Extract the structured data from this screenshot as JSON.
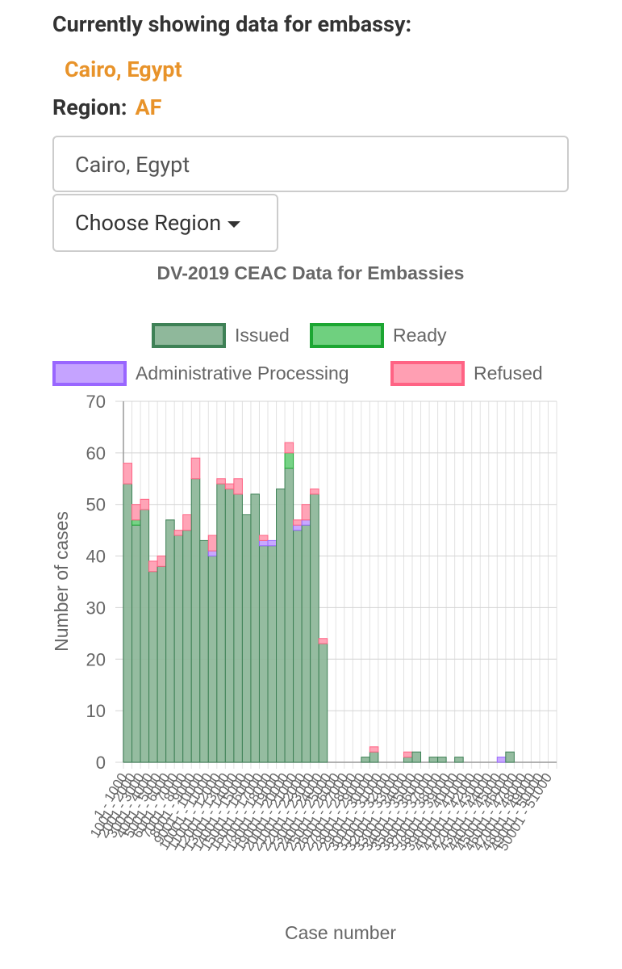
{
  "page": {
    "heading": "Currently showing data for embassy:",
    "embassy": "Cairo, Egypt",
    "region_label": "Region:",
    "region": "AF",
    "input_value": "Cairo, Egypt",
    "button": "Choose Region"
  },
  "chart_data": {
    "type": "bar",
    "stacked": true,
    "title": "DV-2019 CEAC Data for Embassies",
    "x_label": "Case number",
    "y_label": "Number of cases",
    "categories": [
      "1 - 1000",
      "1001 - 2000",
      "2001 - 3000",
      "3001 - 4000",
      "4001 - 5000",
      "5001 - 6000",
      "6001 - 7000",
      "7001 - 8000",
      "8001 - 9000",
      "9001 - 10000",
      "10001 - 11000",
      "11001 - 12000",
      "12001 - 13000",
      "13001 - 14000",
      "14001 - 15000",
      "15001 - 16000",
      "16001 - 17000",
      "17001 - 18000",
      "18001 - 19000",
      "19001 - 20000",
      "20001 - 21000",
      "21001 - 22000",
      "22001 - 23000",
      "23001 - 24000",
      "24001 - 25000",
      "25001 - 26000",
      "26001 - 27000",
      "27001 - 28000",
      "28001 - 29000",
      "29001 - 30000",
      "30001 - 31000",
      "31001 - 32000",
      "32001 - 33000",
      "33001 - 34000",
      "34001 - 35000",
      "35001 - 36000",
      "36001 - 37000",
      "37001 - 38000",
      "38001 - 39000",
      "39001 - 40000",
      "40001 - 41000",
      "41001 - 42000",
      "42001 - 43000",
      "43001 - 44000",
      "44001 - 45000",
      "45001 - 46000",
      "46001 - 47000",
      "47001 - 48000",
      "48001 - 49000",
      "49001 - 50000",
      "50001 - 51000"
    ],
    "series": [
      {
        "name": "Issued",
        "color": "#8fb89b",
        "border": "#3e8156",
        "values": [
          54,
          46,
          49,
          37,
          38,
          47,
          44,
          45,
          55,
          43,
          40,
          54,
          53,
          52,
          48,
          52,
          42,
          42,
          53,
          57,
          45,
          46,
          52,
          23,
          0,
          0,
          0,
          0,
          1,
          2,
          0,
          0,
          0,
          1,
          2,
          0,
          1,
          1,
          0,
          1,
          0,
          0,
          0,
          0,
          0,
          2,
          0,
          0,
          0,
          0,
          0
        ]
      },
      {
        "name": "Ready",
        "color": "#6fd07f",
        "border": "#1ca632",
        "values": [
          0,
          1,
          0,
          0,
          0,
          0,
          0,
          0,
          0,
          0,
          0,
          0,
          0,
          0,
          0,
          0,
          0,
          0,
          0,
          3,
          0,
          0,
          0,
          0,
          0,
          0,
          0,
          0,
          0,
          0,
          0,
          0,
          0,
          0,
          0,
          0,
          0,
          0,
          0,
          0,
          0,
          0,
          0,
          0,
          0,
          0,
          0,
          0,
          0,
          0,
          0
        ]
      },
      {
        "name": "Administrative Processing",
        "color": "#c5a3ff",
        "border": "#9966ff",
        "values": [
          0,
          0,
          0,
          0,
          0,
          0,
          0,
          0,
          0,
          0,
          1,
          0,
          0,
          0,
          0,
          0,
          1,
          1,
          0,
          0,
          1,
          1,
          0,
          0,
          0,
          0,
          0,
          0,
          0,
          0,
          0,
          0,
          0,
          0,
          0,
          0,
          0,
          0,
          0,
          0,
          0,
          0,
          0,
          0,
          1,
          0,
          0,
          0,
          0,
          0,
          0
        ]
      },
      {
        "name": "Refused",
        "color": "#ff9fb3",
        "border": "#ff6384",
        "values": [
          4,
          3,
          2,
          2,
          2,
          0,
          1,
          3,
          4,
          0,
          3,
          1,
          1,
          3,
          0,
          0,
          1,
          0,
          0,
          2,
          1,
          3,
          1,
          1,
          0,
          0,
          0,
          0,
          0,
          1,
          0,
          0,
          0,
          1,
          0,
          0,
          0,
          0,
          0,
          0,
          0,
          0,
          0,
          0,
          0,
          0,
          0,
          0,
          0,
          0,
          0
        ]
      }
    ],
    "ylim": [
      0,
      70
    ],
    "yticks": [
      0,
      10,
      20,
      30,
      40,
      50,
      60,
      70
    ],
    "grid": true
  }
}
